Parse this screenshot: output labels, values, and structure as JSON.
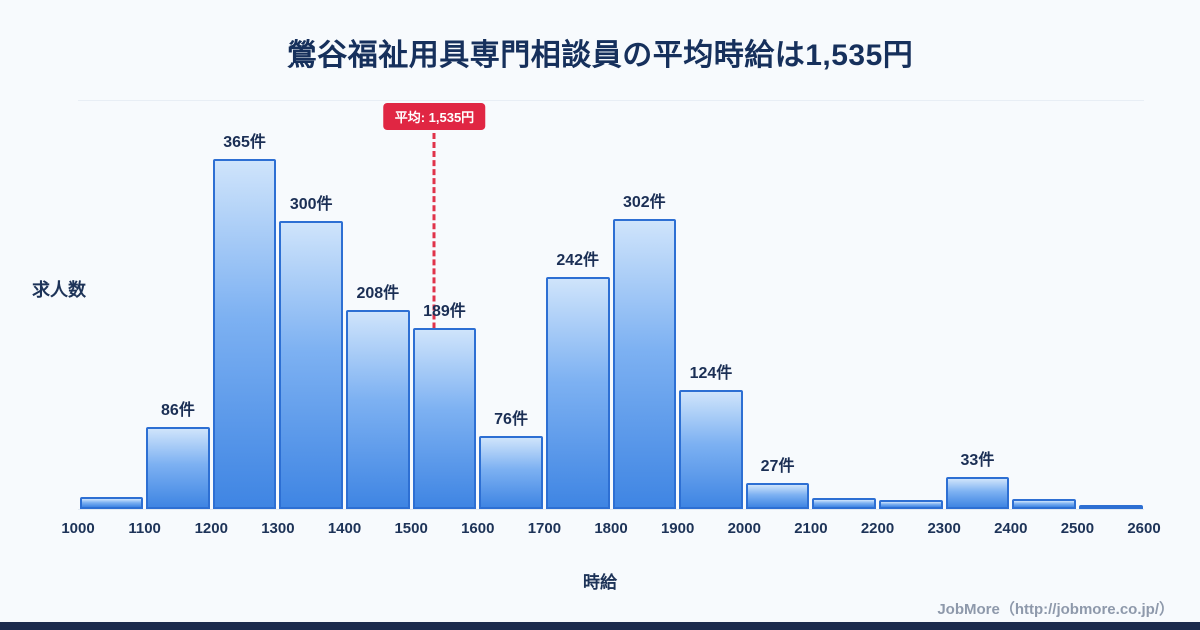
{
  "title": "鶯谷福祉用具専門相談員の平均時給は1,535円",
  "ylabel": "求人数",
  "xlabel": "時給",
  "average_label": "平均: 1,535円",
  "footer": "JobMore（http://jobmore.co.jp/）",
  "colors": {
    "title_navy": "#16305c",
    "bar_fill_top": "#cfe4fb",
    "bar_fill_bottom": "#3f85e3",
    "bar_border": "#2d6fd3",
    "average_red": "#e02643",
    "background": "#f7fafd",
    "bottom_bar_navy": "#1c2b4d",
    "footer_gray": "#8e99ab"
  },
  "chart_data": {
    "type": "bar",
    "title": "鶯谷福祉用具専門相談員の平均時給は1,535円",
    "xlabel": "時給",
    "ylabel": "求人数",
    "bin_edges": [
      1000,
      1100,
      1200,
      1300,
      1400,
      1500,
      1600,
      1700,
      1800,
      1900,
      2000,
      2100,
      2200,
      2300,
      2400,
      2500,
      2600
    ],
    "categories": [
      "1000-1100",
      "1100-1200",
      "1200-1300",
      "1300-1400",
      "1400-1500",
      "1500-1600",
      "1600-1700",
      "1700-1800",
      "1800-1900",
      "1900-2000",
      "2000-2100",
      "2100-2200",
      "2200-2300",
      "2300-2400",
      "2400-2500",
      "2500-2600"
    ],
    "values": [
      12,
      86,
      365,
      300,
      208,
      189,
      76,
      242,
      302,
      124,
      27,
      11,
      9,
      33,
      10,
      4
    ],
    "bar_labels": [
      "",
      "86件",
      "365件",
      "300件",
      "208件",
      "189件",
      "76件",
      "242件",
      "302件",
      "124件",
      "27件",
      "",
      "",
      "33件",
      "",
      ""
    ],
    "average": 1535,
    "x_range": [
      1000,
      2600
    ],
    "ylim": [
      0,
      400
    ],
    "grid": false,
    "legend": false,
    "average_line": {
      "value": 1535,
      "style": "dashed",
      "color": "#e0334a",
      "label": "平均: 1,535円"
    }
  }
}
